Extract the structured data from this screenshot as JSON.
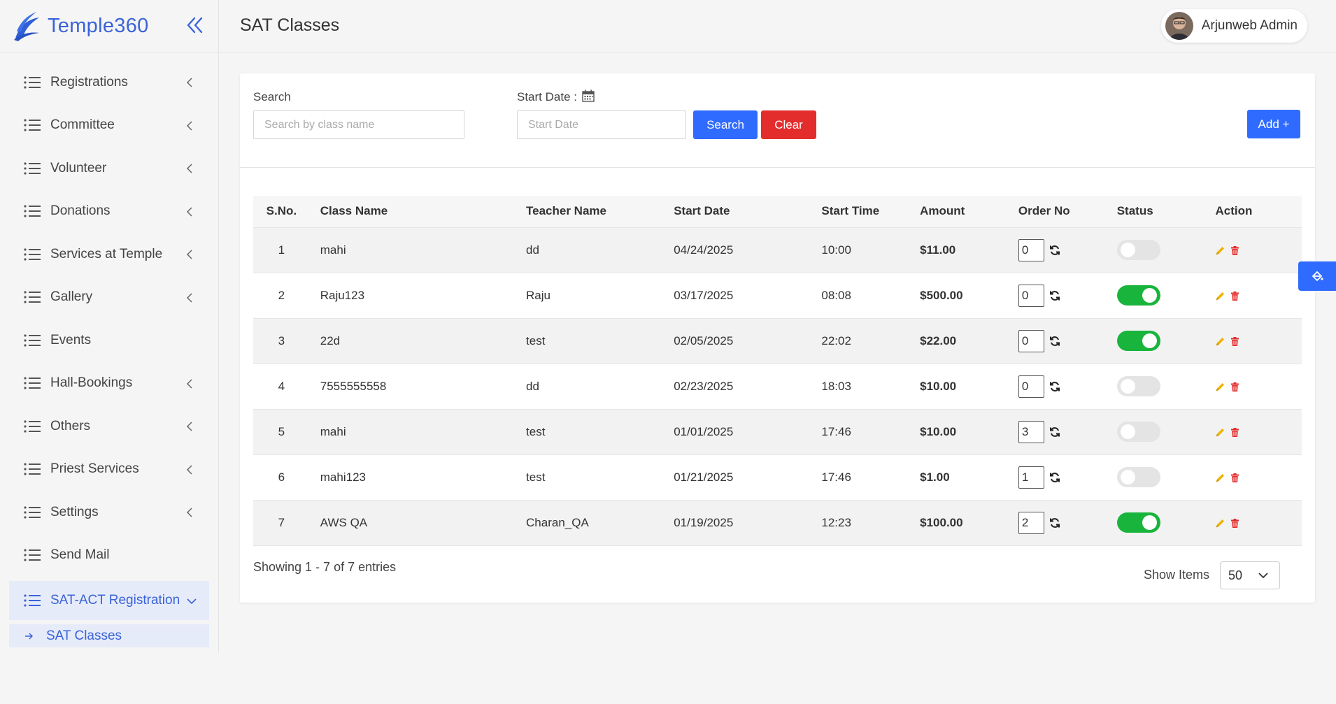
{
  "brand": {
    "name": "Temple360"
  },
  "sidebar": {
    "items": [
      {
        "label": "Registrations",
        "has_chevron": true
      },
      {
        "label": "Committee",
        "has_chevron": true
      },
      {
        "label": "Volunteer",
        "has_chevron": true
      },
      {
        "label": "Donations",
        "has_chevron": true
      },
      {
        "label": "Services at Temple",
        "has_chevron": true
      },
      {
        "label": "Gallery",
        "has_chevron": true
      },
      {
        "label": "Events",
        "has_chevron": false
      },
      {
        "label": "Hall-Bookings",
        "has_chevron": true
      },
      {
        "label": "Others",
        "has_chevron": true
      },
      {
        "label": "Priest Services",
        "has_chevron": true
      },
      {
        "label": "Settings",
        "has_chevron": true
      },
      {
        "label": "Send Mail",
        "has_chevron": false
      }
    ],
    "active_group": "SAT-ACT Registration",
    "active_sub": "SAT Classes"
  },
  "header": {
    "title": "SAT Classes",
    "user_name": "Arjunweb Admin"
  },
  "filters": {
    "search_label": "Search",
    "search_placeholder": "Search by class name",
    "start_date_label": "Start Date :",
    "start_date_placeholder": "Start Date",
    "search_button": "Search",
    "clear_button": "Clear",
    "add_button": "Add +"
  },
  "table": {
    "columns": [
      "S.No.",
      "Class Name",
      "Teacher Name",
      "Start Date",
      "Start Time",
      "Amount",
      "Order No",
      "Status",
      "Action"
    ],
    "rows": [
      {
        "sno": "1",
        "class_name": "mahi",
        "teacher": "dd",
        "start_date": "04/24/2025",
        "start_time": "10:00",
        "amount": "$11.00",
        "order_no": "0",
        "status": false
      },
      {
        "sno": "2",
        "class_name": "Raju123",
        "teacher": "Raju",
        "start_date": "03/17/2025",
        "start_time": "08:08",
        "amount": "$500.00",
        "order_no": "0",
        "status": true
      },
      {
        "sno": "3",
        "class_name": "22d",
        "teacher": "test",
        "start_date": "02/05/2025",
        "start_time": "22:02",
        "amount": "$22.00",
        "order_no": "0",
        "status": true
      },
      {
        "sno": "4",
        "class_name": "7555555558",
        "teacher": "dd",
        "start_date": "02/23/2025",
        "start_time": "18:03",
        "amount": "$10.00",
        "order_no": "0",
        "status": false
      },
      {
        "sno": "5",
        "class_name": "mahi",
        "teacher": "test",
        "start_date": "01/01/2025",
        "start_time": "17:46",
        "amount": "$10.00",
        "order_no": "3",
        "status": false
      },
      {
        "sno": "6",
        "class_name": "mahi123",
        "teacher": "test",
        "start_date": "01/21/2025",
        "start_time": "17:46",
        "amount": "$1.00",
        "order_no": "1",
        "status": false
      },
      {
        "sno": "7",
        "class_name": "AWS QA",
        "teacher": "Charan_QA",
        "start_date": "01/19/2025",
        "start_time": "12:23",
        "amount": "$100.00",
        "order_no": "2",
        "status": true
      }
    ]
  },
  "footer": {
    "showing": "Showing 1 - 7 of 7 entries",
    "show_items_label": "Show Items",
    "show_items_value": "50"
  },
  "colors": {
    "accent": "#3a63d8",
    "primary_button": "#2f6bff",
    "danger": "#e32d2d",
    "toggle_on": "#19b43c",
    "edit_icon": "#f0b400",
    "delete_icon": "#e32d2d"
  }
}
